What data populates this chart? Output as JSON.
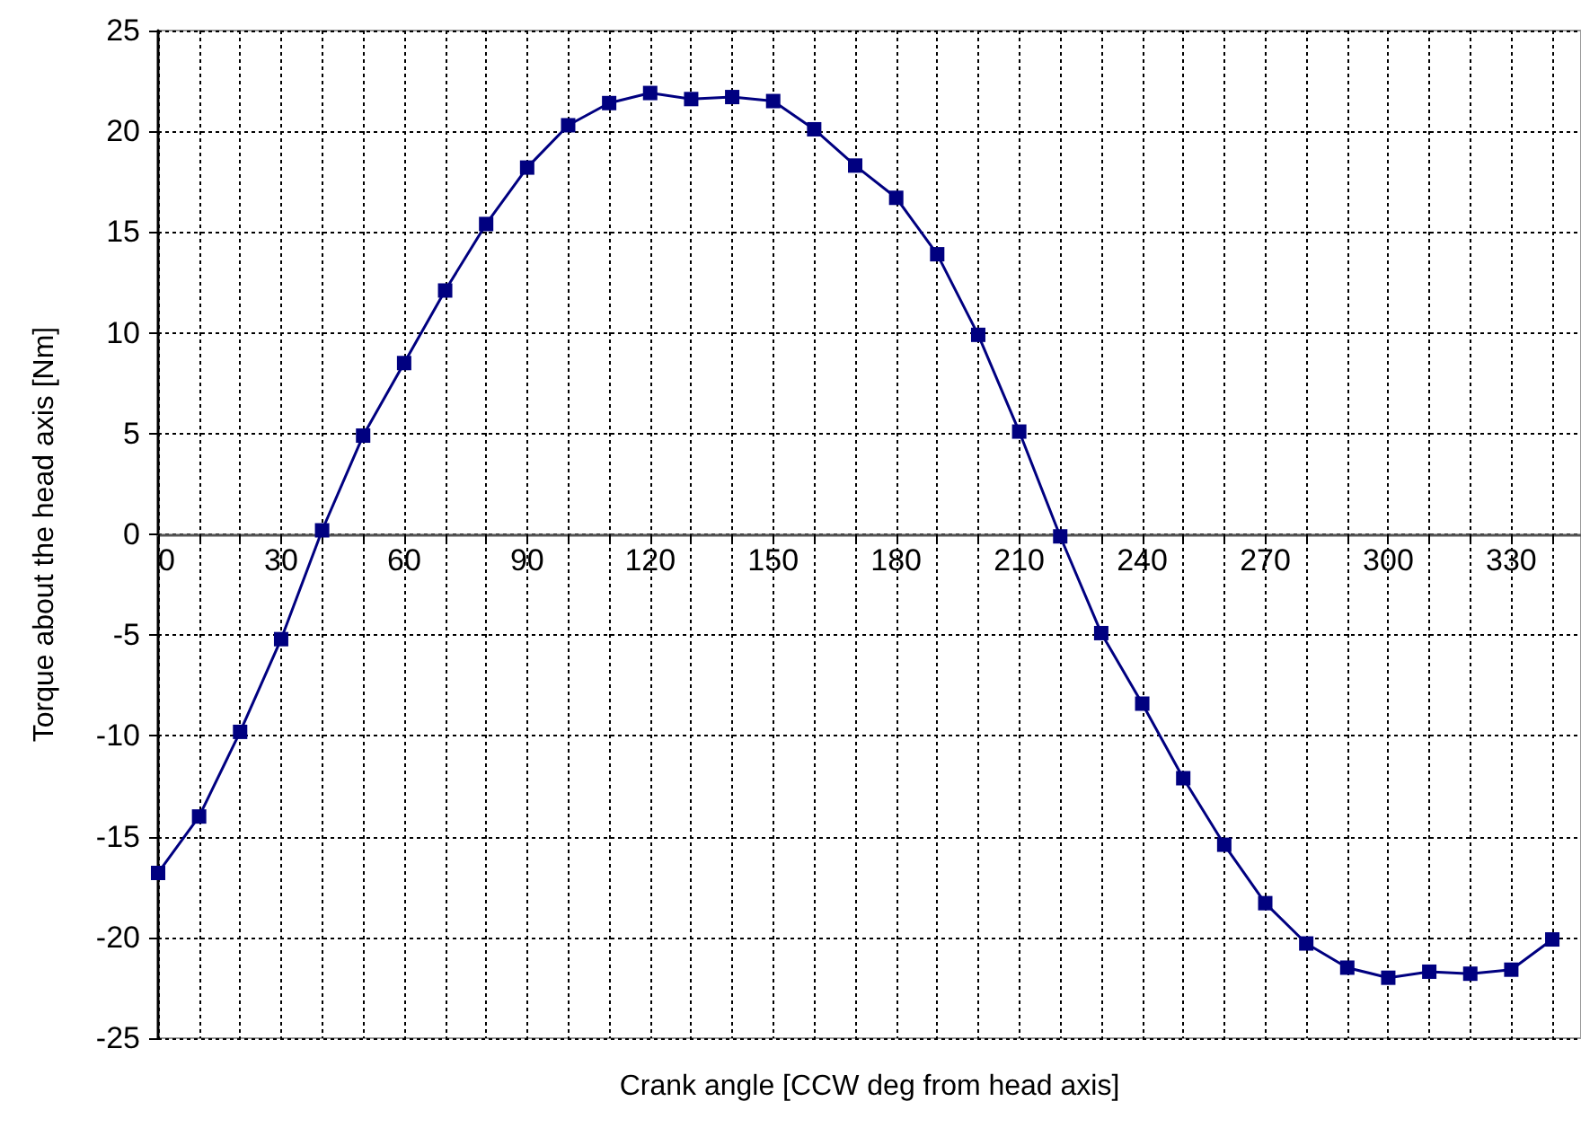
{
  "chart_data": {
    "type": "line",
    "xlabel": "Crank angle [CCW deg from head axis]",
    "ylabel": "Torque about the head axis [Nm]",
    "x": [
      0,
      10,
      20,
      30,
      40,
      50,
      60,
      70,
      80,
      90,
      100,
      110,
      120,
      130,
      140,
      150,
      160,
      170,
      180,
      190,
      200,
      210,
      220,
      230,
      240,
      250,
      260,
      270,
      280,
      290,
      300,
      310,
      320,
      330,
      340
    ],
    "series": [
      {
        "color": "#000080",
        "values": [
          -16.8,
          -14.0,
          -9.8,
          -5.2,
          0.2,
          4.9,
          8.5,
          12.1,
          15.4,
          18.2,
          20.3,
          21.4,
          21.9,
          21.6,
          21.7,
          21.5,
          20.1,
          18.3,
          16.7,
          13.9,
          9.9,
          5.1,
          -0.1,
          -4.9,
          -8.4,
          -12.1,
          -15.4,
          -18.3,
          -20.3,
          -21.5,
          -22.0,
          -21.7,
          -21.8,
          -21.6,
          -20.1
        ]
      }
    ],
    "xlim": [
      0,
      347
    ],
    "xticks": [
      0,
      {
        "value": 10,
        "label": null
      },
      {
        "value": 20,
        "label": null
      },
      30,
      {
        "value": 40,
        "label": null
      },
      {
        "value": 50,
        "label": null
      },
      60,
      {
        "value": 70,
        "label": null
      },
      {
        "value": 80,
        "label": null
      },
      90,
      {
        "value": 100,
        "label": null
      },
      {
        "value": 110,
        "label": null
      },
      120,
      {
        "value": 130,
        "label": null
      },
      {
        "value": 140,
        "label": null
      },
      150,
      {
        "value": 160,
        "label": null
      },
      {
        "value": 170,
        "label": null
      },
      180,
      {
        "value": 190,
        "label": null
      },
      {
        "value": 200,
        "label": null
      },
      210,
      {
        "value": 220,
        "label": null
      },
      {
        "value": 230,
        "label": null
      },
      240,
      {
        "value": 250,
        "label": null
      },
      {
        "value": 260,
        "label": null
      },
      270,
      {
        "value": 280,
        "label": null
      },
      {
        "value": 290,
        "label": null
      },
      300,
      {
        "value": 310,
        "label": null
      },
      {
        "value": 320,
        "label": null
      },
      330,
      {
        "value": 340,
        "label": null
      }
    ],
    "ylim": [
      -25,
      25
    ],
    "yticks": [
      -25,
      -20,
      -15,
      -10,
      -5,
      0,
      5,
      10,
      15,
      20,
      25
    ],
    "grid": true,
    "marker": "square",
    "line_style": "solid"
  }
}
